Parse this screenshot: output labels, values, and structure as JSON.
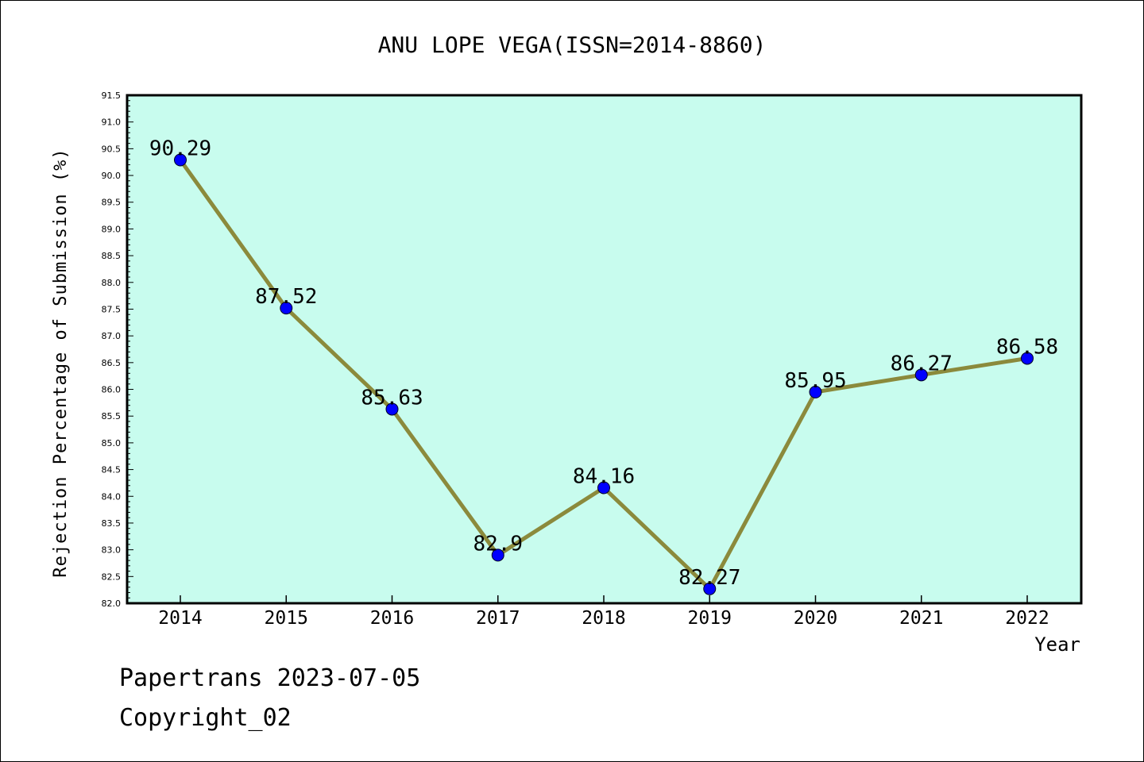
{
  "chart_data": {
    "type": "line",
    "title": "ANU LOPE VEGA(ISSN=2014-8860)",
    "xlabel": "Year",
    "ylabel": "Rejection Percentage of Submission (%)",
    "categories": [
      "2014",
      "2015",
      "2016",
      "2017",
      "2018",
      "2019",
      "2020",
      "2021",
      "2022"
    ],
    "values": [
      90.29,
      87.52,
      85.63,
      82.9,
      84.16,
      82.27,
      85.95,
      86.27,
      86.58
    ],
    "value_labels": [
      "90.29",
      "87.52",
      "85.63",
      "82.9",
      "84.16",
      "82.27",
      "85.95",
      "86.27",
      "86.58"
    ],
    "ylim": [
      82.0,
      91.5
    ],
    "yticks": [
      "82.0",
      "82.5",
      "83.0",
      "83.5",
      "84.0",
      "84.5",
      "85.0",
      "85.5",
      "86.0",
      "86.5",
      "87.0",
      "87.5",
      "88.0",
      "88.5",
      "89.0",
      "89.5",
      "90.0",
      "90.5",
      "91.0",
      "91.5"
    ],
    "grid": false,
    "colors": {
      "plot_background": "#c8fcee",
      "line": "#8b8a3c",
      "marker": "#0000ff",
      "axes": "#000000"
    }
  },
  "footer": {
    "line1": "Papertrans 2023-07-05",
    "line2": "Copyright_02"
  }
}
